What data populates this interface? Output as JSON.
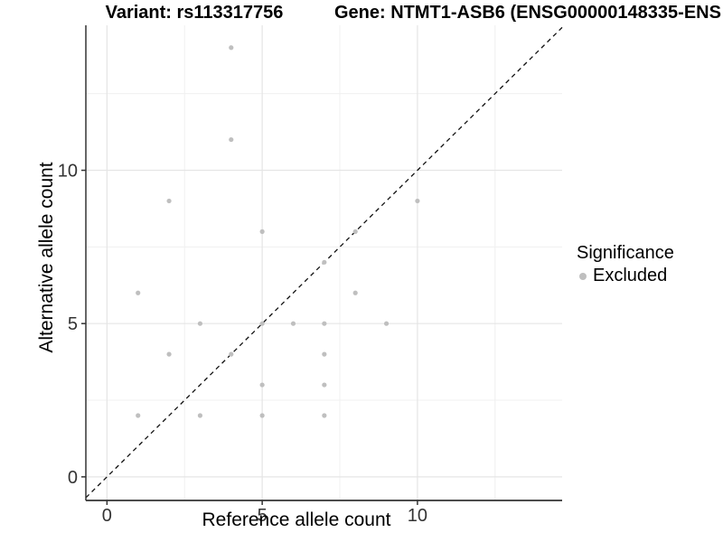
{
  "header": {
    "title_left": "Variant: rs113317756",
    "title_right": "Gene: NTMT1-ASB6 (ENSG00000148335-ENS"
  },
  "legend": {
    "title": "Significance",
    "items": [
      {
        "label": "Excluded",
        "color": "#bfbfbf"
      }
    ]
  },
  "chart_data": {
    "type": "scatter",
    "title": "Variant: rs113317756",
    "subtitle": "Gene: NTMT1-ASB6 (ENSG00000148335-ENS",
    "xlabel": "Reference allele count",
    "ylabel": "Alternative allele count",
    "xlim": [
      -0.68,
      14.66
    ],
    "ylim": [
      -0.77,
      14.73
    ],
    "x_ticks": [
      0,
      5,
      10
    ],
    "y_ticks": [
      0,
      5,
      10
    ],
    "x_minor_ticks": [
      2.5,
      7.5,
      12.5
    ],
    "y_minor_ticks": [
      2.5,
      7.5,
      12.5
    ],
    "grid": true,
    "legend_position": "right",
    "identity_line": {
      "type": "dashed",
      "slope": 1,
      "intercept": 0,
      "color": "#111111"
    },
    "series": [
      {
        "name": "Excluded",
        "color": "#bfbfbf",
        "points": [
          [
            1,
            2
          ],
          [
            1,
            6
          ],
          [
            2,
            4
          ],
          [
            2,
            9
          ],
          [
            3,
            2
          ],
          [
            3,
            5
          ],
          [
            4,
            4
          ],
          [
            4,
            11
          ],
          [
            4,
            14
          ],
          [
            5,
            2
          ],
          [
            5,
            3
          ],
          [
            5,
            5
          ],
          [
            5,
            8
          ],
          [
            6,
            5
          ],
          [
            7,
            2
          ],
          [
            7,
            3
          ],
          [
            7,
            4
          ],
          [
            7,
            5
          ],
          [
            7,
            7
          ],
          [
            8,
            6
          ],
          [
            8,
            8
          ],
          [
            9,
            5
          ],
          [
            10,
            9
          ]
        ]
      }
    ],
    "colors": {
      "point": "#bfbfbf",
      "grid_major": "#e5e5e5",
      "grid_minor": "#f0f0f0",
      "axis_line": "#333333",
      "tick_label": "#333333"
    }
  }
}
